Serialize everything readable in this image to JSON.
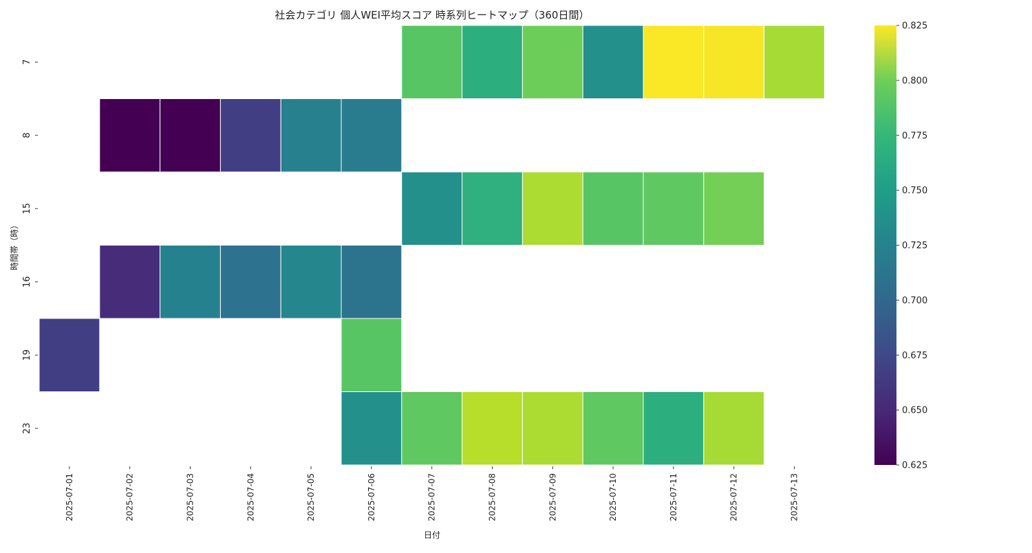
{
  "chart_data": {
    "type": "heatmap",
    "title": "社会カテゴリ 個人WEI平均スコア 時系列ヒートマップ（360日間）",
    "xlabel": "日付",
    "ylabel": "時間帯（時）",
    "x_categories": [
      "2025-07-01",
      "2025-07-02",
      "2025-07-03",
      "2025-07-04",
      "2025-07-05",
      "2025-07-06",
      "2025-07-07",
      "2025-07-08",
      "2025-07-09",
      "2025-07-10",
      "2025-07-11",
      "2025-07-12",
      "2025-07-13"
    ],
    "y_categories": [
      "7",
      "8",
      "15",
      "16",
      "19",
      "23"
    ],
    "colormap": "viridis",
    "value_range": [
      0.625,
      0.825
    ],
    "colorbar_ticks": [
      "0.625",
      "0.650",
      "0.675",
      "0.700",
      "0.725",
      "0.750",
      "0.775",
      "0.800",
      "0.825"
    ],
    "cells": [
      {
        "x": "2025-07-07",
        "y": "7",
        "value": 0.772
      },
      {
        "x": "2025-07-08",
        "y": "7",
        "value": 0.75
      },
      {
        "x": "2025-07-09",
        "y": "7",
        "value": 0.78
      },
      {
        "x": "2025-07-10",
        "y": "7",
        "value": 0.725
      },
      {
        "x": "2025-07-11",
        "y": "7",
        "value": 0.824
      },
      {
        "x": "2025-07-12",
        "y": "7",
        "value": 0.823
      },
      {
        "x": "2025-07-13",
        "y": "7",
        "value": 0.798
      },
      {
        "x": "2025-07-02",
        "y": "8",
        "value": 0.625
      },
      {
        "x": "2025-07-03",
        "y": "8",
        "value": 0.625
      },
      {
        "x": "2025-07-04",
        "y": "8",
        "value": 0.662
      },
      {
        "x": "2025-07-05",
        "y": "8",
        "value": 0.712
      },
      {
        "x": "2025-07-06",
        "y": "8",
        "value": 0.708
      },
      {
        "x": "2025-07-07",
        "y": "15",
        "value": 0.725
      },
      {
        "x": "2025-07-08",
        "y": "15",
        "value": 0.752
      },
      {
        "x": "2025-07-09",
        "y": "15",
        "value": 0.8
      },
      {
        "x": "2025-07-10",
        "y": "15",
        "value": 0.772
      },
      {
        "x": "2025-07-11",
        "y": "15",
        "value": 0.775
      },
      {
        "x": "2025-07-12",
        "y": "15",
        "value": 0.782
      },
      {
        "x": "2025-07-02",
        "y": "16",
        "value": 0.65
      },
      {
        "x": "2025-07-03",
        "y": "16",
        "value": 0.713
      },
      {
        "x": "2025-07-04",
        "y": "16",
        "value": 0.7
      },
      {
        "x": "2025-07-05",
        "y": "16",
        "value": 0.718
      },
      {
        "x": "2025-07-06",
        "y": "16",
        "value": 0.702
      },
      {
        "x": "2025-07-01",
        "y": "19",
        "value": 0.662
      },
      {
        "x": "2025-07-06",
        "y": "19",
        "value": 0.772
      },
      {
        "x": "2025-07-06",
        "y": "23",
        "value": 0.725
      },
      {
        "x": "2025-07-07",
        "y": "23",
        "value": 0.775
      },
      {
        "x": "2025-07-08",
        "y": "23",
        "value": 0.803
      },
      {
        "x": "2025-07-09",
        "y": "23",
        "value": 0.8
      },
      {
        "x": "2025-07-10",
        "y": "23",
        "value": 0.775
      },
      {
        "x": "2025-07-11",
        "y": "23",
        "value": 0.75
      },
      {
        "x": "2025-07-12",
        "y": "23",
        "value": 0.798
      }
    ]
  }
}
